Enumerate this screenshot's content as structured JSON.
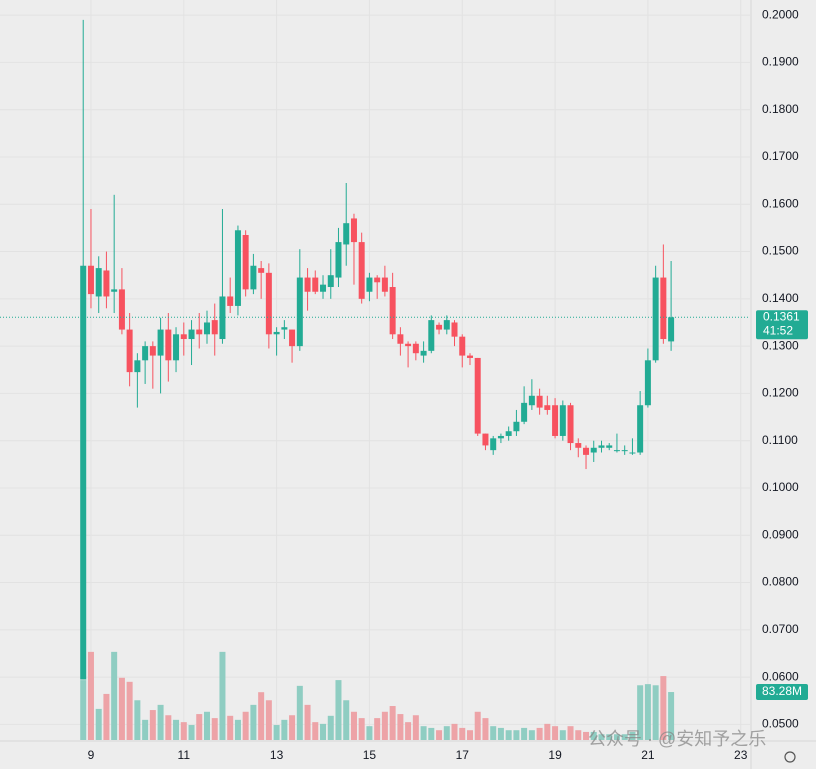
{
  "chart_data": {
    "type": "candlestick",
    "x": [
      8.833,
      9,
      9.167,
      9.333,
      9.5,
      9.667,
      9.833,
      10,
      10.167,
      10.333,
      10.5,
      10.667,
      10.833,
      11,
      11.167,
      11.333,
      11.5,
      11.667,
      11.833,
      12,
      12.167,
      12.333,
      12.5,
      12.667,
      12.833,
      13,
      13.167,
      13.333,
      13.5,
      13.667,
      13.833,
      14,
      14.167,
      14.333,
      14.5,
      14.667,
      14.833,
      15,
      15.167,
      15.333,
      15.5,
      15.667,
      15.833,
      16,
      16.167,
      16.333,
      16.5,
      16.667,
      16.833,
      17,
      17.167,
      17.333,
      17.5,
      17.667,
      17.833,
      18,
      18.167,
      18.333,
      18.5,
      18.667,
      18.833,
      19,
      19.167,
      19.333,
      19.5,
      19.667,
      19.833,
      20,
      20.167,
      20.333,
      20.5,
      20.667,
      20.833,
      21,
      21.167,
      21.333,
      21.5
    ],
    "open": [
      0.0595,
      0.147,
      0.1405,
      0.146,
      0.1415,
      0.142,
      0.1335,
      0.1245,
      0.127,
      0.13,
      0.128,
      0.1335,
      0.127,
      0.1325,
      0.1315,
      0.1335,
      0.1325,
      0.1355,
      0.1315,
      0.1405,
      0.1385,
      0.1535,
      0.142,
      0.1465,
      0.1455,
      0.1325,
      0.1335,
      0.1335,
      0.13,
      0.1445,
      0.1445,
      0.1415,
      0.1425,
      0.1445,
      0.1515,
      0.157,
      0.152,
      0.1415,
      0.1445,
      0.1445,
      0.1425,
      0.1325,
      0.1305,
      0.1305,
      0.128,
      0.129,
      0.1345,
      0.1335,
      0.135,
      0.132,
      0.128,
      0.1275,
      0.1115,
      0.108,
      0.1105,
      0.111,
      0.112,
      0.114,
      0.1175,
      0.1195,
      0.1175,
      0.1175,
      0.111,
      0.1175,
      0.1095,
      0.1085,
      0.1075,
      0.1085,
      0.1085,
      0.108,
      0.108,
      0.1075,
      0.1075,
      0.1175,
      0.127,
      0.1445,
      0.131
    ],
    "high": [
      0.199,
      0.159,
      0.149,
      0.15,
      0.162,
      0.1465,
      0.137,
      0.1285,
      0.131,
      0.131,
      0.136,
      0.137,
      0.134,
      0.135,
      0.1355,
      0.137,
      0.1375,
      0.139,
      0.159,
      0.1445,
      0.1555,
      0.1545,
      0.1495,
      0.148,
      0.1475,
      0.134,
      0.1355,
      0.1335,
      0.1505,
      0.1465,
      0.146,
      0.145,
      0.1505,
      0.155,
      0.1645,
      0.158,
      0.154,
      0.1455,
      0.145,
      0.147,
      0.1455,
      0.134,
      0.131,
      0.131,
      0.131,
      0.1365,
      0.135,
      0.1365,
      0.1355,
      0.1325,
      0.1285,
      0.1275,
      0.1115,
      0.111,
      0.1115,
      0.113,
      0.1165,
      0.1215,
      0.123,
      0.121,
      0.1195,
      0.119,
      0.1185,
      0.118,
      0.1105,
      0.109,
      0.11,
      0.11,
      0.1095,
      0.1115,
      0.109,
      0.1105,
      0.1205,
      0.1295,
      0.147,
      0.1515,
      0.148
    ],
    "low": [
      0.0595,
      0.138,
      0.137,
      0.138,
      0.137,
      0.1325,
      0.1215,
      0.117,
      0.122,
      0.121,
      0.12,
      0.1225,
      0.1245,
      0.128,
      0.126,
      0.1295,
      0.1305,
      0.128,
      0.1305,
      0.137,
      0.1365,
      0.1405,
      0.141,
      0.14,
      0.1295,
      0.128,
      0.1315,
      0.1265,
      0.129,
      0.1375,
      0.141,
      0.14,
      0.14,
      0.1425,
      0.147,
      0.143,
      0.139,
      0.1395,
      0.14,
      0.1405,
      0.1315,
      0.128,
      0.1255,
      0.127,
      0.1265,
      0.1285,
      0.1325,
      0.1325,
      0.13,
      0.1255,
      0.126,
      0.111,
      0.108,
      0.107,
      0.1095,
      0.11,
      0.111,
      0.1135,
      0.1165,
      0.1155,
      0.1155,
      0.1105,
      0.11,
      0.108,
      0.1065,
      0.104,
      0.1055,
      0.1075,
      0.108,
      0.1075,
      0.107,
      0.107,
      0.107,
      0.117,
      0.1265,
      0.1305,
      0.129
    ],
    "close": [
      0.147,
      0.141,
      0.1465,
      0.1405,
      0.142,
      0.1335,
      0.1245,
      0.127,
      0.13,
      0.128,
      0.1335,
      0.127,
      0.1325,
      0.1315,
      0.1335,
      0.1325,
      0.135,
      0.1325,
      0.1405,
      0.1385,
      0.1545,
      0.142,
      0.147,
      0.1455,
      0.1325,
      0.133,
      0.134,
      0.13,
      0.1445,
      0.1415,
      0.1415,
      0.143,
      0.145,
      0.152,
      0.156,
      0.152,
      0.14,
      0.1445,
      0.1435,
      0.1415,
      0.1325,
      0.1305,
      0.13,
      0.1285,
      0.129,
      0.1355,
      0.1335,
      0.1355,
      0.132,
      0.128,
      0.1275,
      0.1115,
      0.109,
      0.1105,
      0.111,
      0.112,
      0.114,
      0.118,
      0.1195,
      0.117,
      0.1165,
      0.111,
      0.1175,
      0.1095,
      0.1085,
      0.107,
      0.1085,
      0.109,
      0.109,
      0.108,
      0.108,
      0.1075,
      0.1175,
      0.127,
      0.1445,
      0.1315,
      0.1361
    ],
    "volume": {
      "values": [
        104,
        153,
        54,
        80,
        153,
        108,
        101,
        69,
        35,
        52,
        61,
        43,
        35,
        31,
        26,
        45,
        49,
        38,
        153,
        42,
        35,
        49,
        61,
        83,
        69,
        26,
        35,
        43,
        94,
        61,
        31,
        28,
        42,
        104,
        69,
        49,
        38,
        24,
        38,
        49,
        59,
        45,
        31,
        43,
        24,
        21,
        17,
        24,
        28,
        21,
        17,
        49,
        38,
        24,
        21,
        17,
        17,
        21,
        17,
        21,
        28,
        24,
        17,
        24,
        17,
        14,
        14,
        10,
        10,
        10,
        10,
        14,
        95,
        97,
        95,
        111,
        83.28
      ],
      "label": "83.28M"
    },
    "up_color": "#22ab94",
    "down_color": "#f7525f",
    "volume_up_color": "#8fcdc2",
    "volume_down_color": "#eda3a7",
    "ylim": [
      0.0467,
      0.2032
    ],
    "yticks": [
      {
        "value": 0.05,
        "label": "0.0500"
      },
      {
        "value": 0.06,
        "label": "0.0600"
      },
      {
        "value": 0.07,
        "label": "0.0700"
      },
      {
        "value": 0.08,
        "label": "0.0800"
      },
      {
        "value": 0.09,
        "label": "0.0900"
      },
      {
        "value": 0.1,
        "label": "0.1000"
      },
      {
        "value": 0.11,
        "label": "0.1100"
      },
      {
        "value": 0.12,
        "label": "0.1200"
      },
      {
        "value": 0.13,
        "label": "0.1300"
      },
      {
        "value": 0.14,
        "label": "0.1400"
      },
      {
        "value": 0.15,
        "label": "0.1500"
      },
      {
        "value": 0.16,
        "label": "0.1600"
      },
      {
        "value": 0.17,
        "label": "0.1700"
      },
      {
        "value": 0.18,
        "label": "0.1800"
      },
      {
        "value": 0.19,
        "label": "0.1900"
      },
      {
        "value": 0.2,
        "label": "0.2000"
      }
    ],
    "xlim": [
      7.04,
      23.2
    ],
    "xticks": [
      9,
      11,
      13,
      15,
      17,
      19,
      21,
      23
    ],
    "grid": true,
    "countdown": "41:52",
    "watermark": "公众号 · @安知予之乐"
  }
}
